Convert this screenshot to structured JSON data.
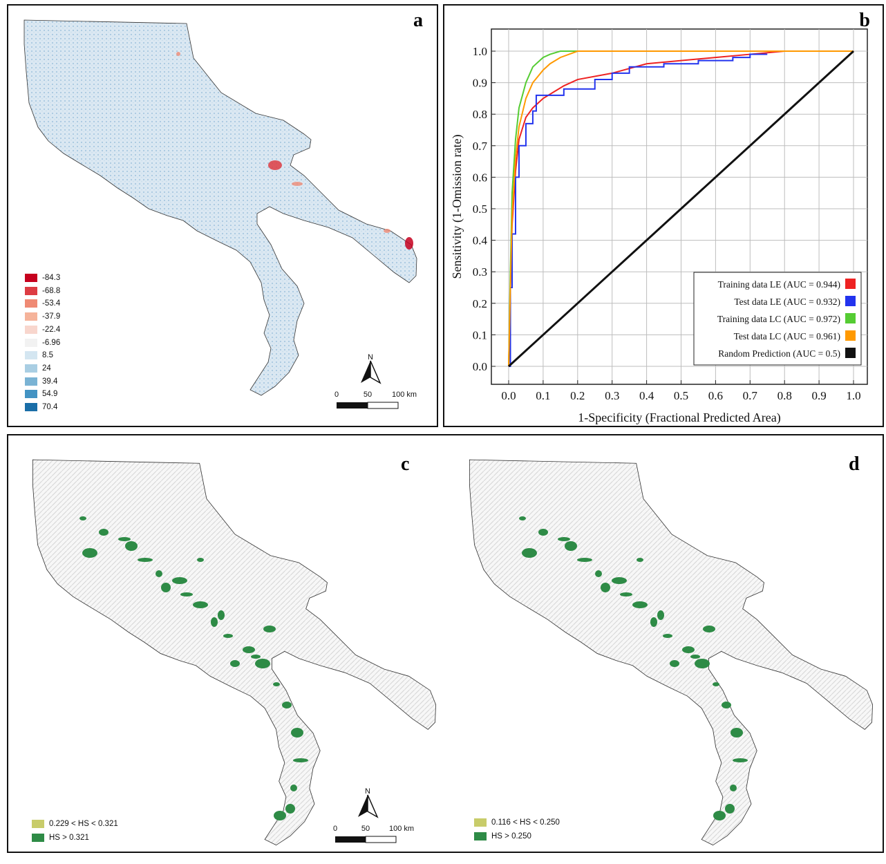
{
  "panels": {
    "a": {
      "letter": "a",
      "legend": [
        {
          "label": "-84.3",
          "color": "#c6001e"
        },
        {
          "label": "-68.8",
          "color": "#dd3c43"
        },
        {
          "label": "-53.4",
          "color": "#ef8a74"
        },
        {
          "label": "-37.9",
          "color": "#f5b39a"
        },
        {
          "label": "-22.4",
          "color": "#f8d6cd"
        },
        {
          "label": "-6.96",
          "color": "#f2f2f2"
        },
        {
          "label": "8.5",
          "color": "#d4e6f1"
        },
        {
          "label": "24",
          "color": "#a9cee3"
        },
        {
          "label": "39.4",
          "color": "#7ab3d4"
        },
        {
          "label": "54.9",
          "color": "#4393c3"
        },
        {
          "label": "70.4",
          "color": "#1a6ea8"
        }
      ],
      "north": "N",
      "scale": {
        "t0": "0",
        "t1": "50",
        "t2": "100 km"
      }
    },
    "b": {
      "letter": "b",
      "chart_data": {
        "type": "line",
        "xlabel": "1-Specificity (Fractional Predicted Area)",
        "ylabel": "Sensitivity (1-Omission rate)",
        "xlim": [
          0,
          1
        ],
        "ylim": [
          0,
          1
        ],
        "xticks": [
          "0.0",
          "0.1",
          "0.2",
          "0.3",
          "0.4",
          "0.5",
          "0.6",
          "0.7",
          "0.8",
          "0.9",
          "1.0"
        ],
        "yticks": [
          "0.0",
          "0.1",
          "0.2",
          "0.3",
          "0.4",
          "0.5",
          "0.6",
          "0.7",
          "0.8",
          "0.9",
          "1.0"
        ],
        "grid": true,
        "legend_position": "bottom-right",
        "series": [
          {
            "name": "Training data  LE (AUC = 0.944)",
            "color": "#ee2222",
            "x": [
              0,
              0.005,
              0.01,
              0.02,
              0.03,
              0.05,
              0.07,
              0.1,
              0.13,
              0.16,
              0.2,
              0.3,
              0.4,
              0.5,
              0.6,
              0.7,
              0.8,
              1.0
            ],
            "y": [
              0,
              0.25,
              0.45,
              0.62,
              0.72,
              0.79,
              0.82,
              0.85,
              0.87,
              0.89,
              0.91,
              0.93,
              0.96,
              0.97,
              0.98,
              0.99,
              1.0,
              1.0
            ]
          },
          {
            "name": "Test data  LE (AUC = 0.932)",
            "color": "#2233ee",
            "x": [
              0,
              0.005,
              0.01,
              0.02,
              0.03,
              0.05,
              0.07,
              0.08,
              0.13,
              0.16,
              0.2,
              0.25,
              0.3,
              0.35,
              0.45,
              0.55,
              0.65,
              0.7,
              0.75
            ],
            "y": [
              0,
              0.25,
              0.42,
              0.6,
              0.7,
              0.77,
              0.81,
              0.86,
              0.86,
              0.88,
              0.88,
              0.91,
              0.93,
              0.95,
              0.96,
              0.97,
              0.98,
              0.99,
              0.99
            ]
          },
          {
            "name": "Training data  LC (AUC = 0.972)",
            "color": "#55cc33",
            "x": [
              0,
              0.005,
              0.01,
              0.02,
              0.03,
              0.05,
              0.07,
              0.1,
              0.12,
              0.15,
              0.3,
              0.4,
              1.0
            ],
            "y": [
              0,
              0.3,
              0.55,
              0.72,
              0.82,
              0.9,
              0.95,
              0.98,
              0.99,
              1.0,
              1.0,
              1.0,
              1.0
            ]
          },
          {
            "name": "Test data  LC (AUC = 0.961)",
            "color": "#ff9900",
            "x": [
              0,
              0.005,
              0.01,
              0.02,
              0.03,
              0.05,
              0.07,
              0.1,
              0.12,
              0.15,
              0.2,
              0.47,
              1.0
            ],
            "y": [
              0,
              0.25,
              0.48,
              0.66,
              0.76,
              0.85,
              0.9,
              0.94,
              0.96,
              0.98,
              1.0,
              1.0,
              1.0
            ]
          },
          {
            "name": "Random Prediction  (AUC = 0.5)",
            "color": "#111111",
            "x": [
              0,
              1
            ],
            "y": [
              0,
              1
            ]
          }
        ]
      }
    },
    "c": {
      "letter": "c",
      "legend": [
        {
          "label": "0.229 < HS < 0.321",
          "color": "#c8cc6a"
        },
        {
          "label": "HS > 0.321",
          "color": "#2e8b46"
        }
      ],
      "north": "N",
      "scale": {
        "t0": "0",
        "t1": "50",
        "t2": "100 km"
      }
    },
    "d": {
      "letter": "d",
      "legend": [
        {
          "label": "0.116 < HS < 0.250",
          "color": "#c8cc6a"
        },
        {
          "label": "HS > 0.250",
          "color": "#2e8b46"
        }
      ]
    }
  }
}
